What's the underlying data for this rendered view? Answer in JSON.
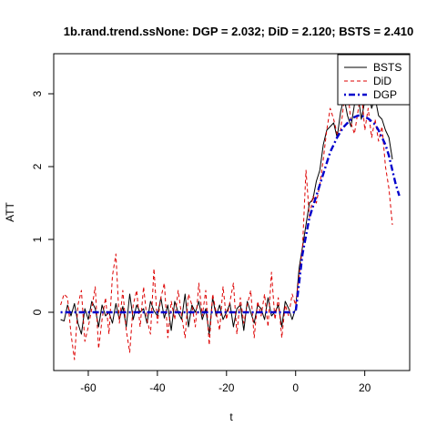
{
  "chart_data": {
    "type": "line",
    "title": "1b.rand.trend.ssNone: DGP = 2.032; DiD = 2.120;  BSTS = 2.410",
    "xlabel": "t",
    "ylabel": "ATT",
    "xlim": [
      -70,
      33
    ],
    "ylim": [
      -0.8,
      3.55
    ],
    "x_ticks": [
      -60,
      -40,
      -20,
      0,
      20
    ],
    "y_ticks": [
      0,
      1,
      2,
      3
    ],
    "legend_position": "top-right",
    "grid": false,
    "series": [
      {
        "name": "BSTS",
        "color": "#000000",
        "style": "solid",
        "x_start": -68,
        "values": [
          -0.1,
          -0.12,
          0.1,
          -0.05,
          0.12,
          -0.15,
          -0.3,
          0.05,
          -0.1,
          0.15,
          0.05,
          -0.2,
          0.1,
          -0.05,
          0.0,
          -0.15,
          0.12,
          -0.1,
          0.08,
          -0.2,
          0.25,
          -0.1,
          0.1,
          0.0,
          0.05,
          -0.15,
          0.15,
          0.02,
          -0.05,
          0.2,
          -0.08,
          0.1,
          -0.25,
          0.15,
          0.0,
          -0.1,
          0.25,
          -0.2,
          0.1,
          0.0,
          0.15,
          -0.1,
          0.05,
          -0.3,
          0.2,
          -0.05,
          0.1,
          -0.1,
          0.0,
          0.12,
          -0.2,
          0.05,
          0.1,
          -0.25,
          0.15,
          0.0,
          -0.15,
          0.1,
          0.05,
          -0.1,
          0.2,
          -0.05,
          0.0,
          0.1,
          -0.2,
          0.15,
          0.05,
          -0.1,
          0.05,
          0.6,
          0.9,
          1.2,
          1.5,
          1.55,
          1.8,
          1.95,
          2.3,
          2.5,
          2.55,
          2.6,
          2.4,
          2.75,
          2.95,
          2.7,
          2.55,
          2.85,
          3.0,
          2.65,
          2.9,
          3.05,
          2.8,
          2.95,
          2.7,
          2.65,
          2.5,
          2.4,
          2.1
        ]
      },
      {
        "name": "DiD",
        "color": "#dd0000",
        "style": "dashed",
        "x_start": -68,
        "values": [
          0.1,
          0.25,
          0.2,
          -0.3,
          -0.65,
          0.1,
          0.3,
          -0.4,
          -0.2,
          0.05,
          0.35,
          -0.5,
          -0.1,
          0.2,
          -0.3,
          0.5,
          0.8,
          -0.15,
          0.3,
          -0.25,
          -0.55,
          0.1,
          0.3,
          -0.2,
          0.35,
          -0.1,
          -0.3,
          0.6,
          -0.15,
          0.2,
          0.4,
          -0.35,
          0.15,
          -0.1,
          0.3,
          -0.05,
          -0.35,
          0.25,
          0.1,
          -0.2,
          0.4,
          -0.05,
          0.3,
          -0.45,
          0.25,
          0.0,
          -0.25,
          0.35,
          -0.1,
          0.15,
          0.4,
          -0.3,
          0.2,
          -0.15,
          0.1,
          0.3,
          -0.35,
          0.15,
          -0.05,
          0.25,
          -0.2,
          0.55,
          -0.1,
          0.2,
          -0.35,
          0.1,
          -0.05,
          0.25,
          0.1,
          0.5,
          0.9,
          1.95,
          1.3,
          1.6,
          1.5,
          1.75,
          2.1,
          2.5,
          2.8,
          2.65,
          2.45,
          2.5,
          2.9,
          3.1,
          2.6,
          2.45,
          2.75,
          3.05,
          2.5,
          2.8,
          2.4,
          2.65,
          2.35,
          2.55,
          2.0,
          1.7,
          1.2
        ]
      },
      {
        "name": "DGP",
        "color": "#0000cc",
        "style": "dot-dash",
        "points": [
          [
            -68,
            0.0
          ],
          [
            0,
            0.0
          ],
          [
            1,
            0.4
          ],
          [
            2,
            0.8
          ],
          [
            3,
            1.05
          ],
          [
            4,
            1.3
          ],
          [
            5,
            1.45
          ],
          [
            6,
            1.6
          ],
          [
            7,
            1.75
          ],
          [
            8,
            1.9
          ],
          [
            9,
            2.05
          ],
          [
            10,
            2.2
          ],
          [
            11,
            2.3
          ],
          [
            12,
            2.4
          ],
          [
            13,
            2.48
          ],
          [
            14,
            2.55
          ],
          [
            15,
            2.6
          ],
          [
            16,
            2.65
          ],
          [
            17,
            2.68
          ],
          [
            18,
            2.7
          ],
          [
            19,
            2.7
          ],
          [
            20,
            2.68
          ],
          [
            21,
            2.66
          ],
          [
            22,
            2.62
          ],
          [
            23,
            2.58
          ],
          [
            24,
            2.5
          ],
          [
            25,
            2.4
          ],
          [
            26,
            2.3
          ],
          [
            27,
            2.15
          ],
          [
            28,
            1.95
          ],
          [
            29,
            1.75
          ],
          [
            30,
            1.6
          ]
        ]
      }
    ]
  }
}
